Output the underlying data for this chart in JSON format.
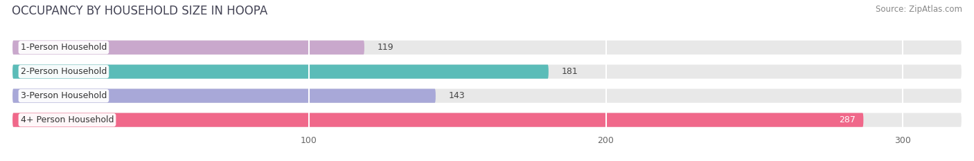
{
  "title": "OCCUPANCY BY HOUSEHOLD SIZE IN HOOPA",
  "source": "Source: ZipAtlas.com",
  "categories": [
    "1-Person Household",
    "2-Person Household",
    "3-Person Household",
    "4+ Person Household"
  ],
  "values": [
    119,
    181,
    143,
    287
  ],
  "bar_colors": [
    "#c9a8cc",
    "#5bbcb8",
    "#a8a8d8",
    "#f0688a"
  ],
  "bar_bg_color": "#e8e8e8",
  "xlim": [
    0,
    320
  ],
  "xticks": [
    100,
    200,
    300
  ],
  "value_inside_threshold": 250,
  "title_fontsize": 12,
  "source_fontsize": 8.5,
  "bar_label_fontsize": 9,
  "category_fontsize": 9,
  "tick_fontsize": 9,
  "figsize": [
    14.06,
    2.33
  ],
  "dpi": 100
}
